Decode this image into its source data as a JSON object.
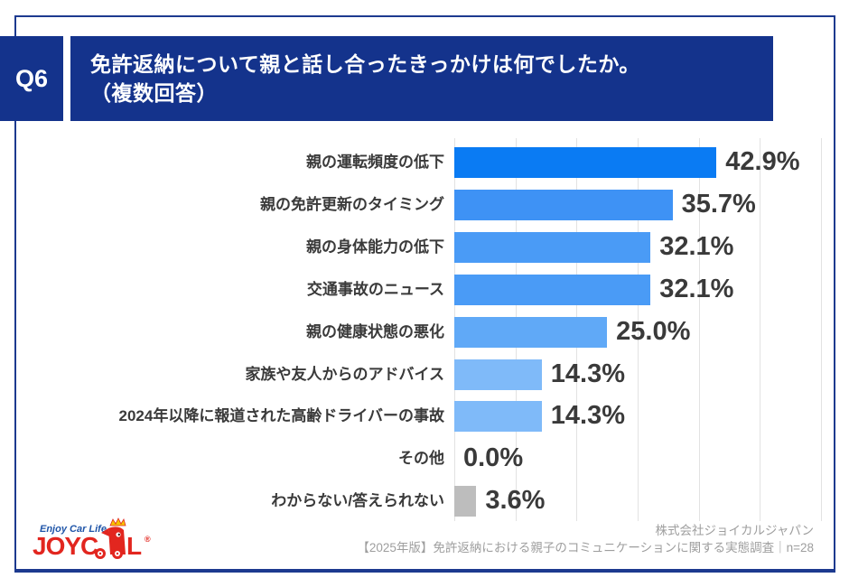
{
  "header": {
    "q_label": "Q6",
    "title_line1": "免許返納について親と話し合ったきっかけは何でしたか。",
    "title_line2": "（複数回答）"
  },
  "chart_data": {
    "type": "bar",
    "orientation": "horizontal",
    "title": "免許返納について親と話し合ったきっかけは何でしたか。（複数回答）",
    "categories": [
      "親の運転頻度の低下",
      "親の免許更新のタイミング",
      "親の身体能力の低下",
      "交通事故のニュース",
      "親の健康状態の悪化",
      "家族や友人からのアドバイス",
      "2024年以降に報道された高齢ドライバーの事故",
      "その他",
      "わからない/答えられない"
    ],
    "values": [
      42.9,
      35.7,
      32.1,
      32.1,
      25.0,
      14.3,
      14.3,
      0.0,
      3.6
    ],
    "value_labels": [
      "42.9%",
      "35.7%",
      "32.1%",
      "32.1%",
      "25.0%",
      "14.3%",
      "14.3%",
      "0.0%",
      "3.6%"
    ],
    "xlim": [
      0,
      60
    ],
    "gridline_step": 10,
    "grid": true,
    "legend": "none",
    "bar_colors": [
      "#0a7bf3",
      "#3e92f5",
      "#4a9bf6",
      "#4a9bf6",
      "#60a9f7",
      "#7fbaf9",
      "#7fbaf9",
      "#0a7bf3",
      "#bdbdbd"
    ]
  },
  "footer": {
    "company": "株式会社ジョイカルジャパン",
    "survey": "【2025年版】免許返納における親子のコミュニケーションに関する実態調査｜n=28"
  },
  "logo": {
    "tagline": "Enjoy Car Life",
    "brand_left": "JOYC",
    "brand_right": "L",
    "registered": "®"
  },
  "colors": {
    "banner_navy": "#14338c",
    "frame_navy": "#1d3a8f",
    "text_dark": "#3a3a3a",
    "footer_gray": "#9e9e9e",
    "gridline": "#e2e2e2",
    "logo_red": "#e2261f",
    "logo_blue": "#1f55a8",
    "crown_yellow": "#f5c400"
  }
}
